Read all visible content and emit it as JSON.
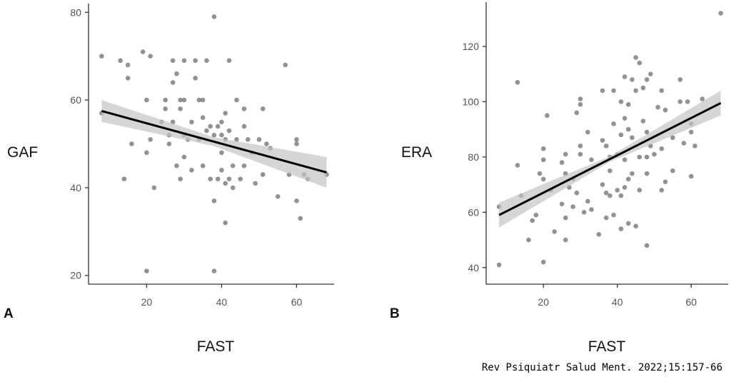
{
  "chart_data": [
    {
      "type": "scatter",
      "panel_label": "A",
      "xlabel": "FAST",
      "ylabel": "GAF",
      "xlim": [
        4.5,
        70
      ],
      "ylim": [
        18,
        82
      ],
      "xticks": [
        20,
        40,
        60
      ],
      "yticks": [
        20,
        40,
        60,
        80
      ],
      "grid": false,
      "regression": {
        "x": [
          8,
          68
        ],
        "y": [
          57.5,
          43.5
        ],
        "ci_halfwidth_ends": [
          2.5,
          3.5
        ]
      },
      "points": [
        [
          8,
          70
        ],
        [
          8,
          57
        ],
        [
          13,
          69
        ],
        [
          15,
          68
        ],
        [
          15,
          65
        ],
        [
          14,
          42
        ],
        [
          16,
          50
        ],
        [
          19,
          71
        ],
        [
          21,
          70
        ],
        [
          21,
          51
        ],
        [
          20,
          21
        ],
        [
          20,
          60
        ],
        [
          20,
          48
        ],
        [
          22,
          40
        ],
        [
          24,
          55
        ],
        [
          25,
          60
        ],
        [
          25,
          58
        ],
        [
          26,
          52
        ],
        [
          26,
          50
        ],
        [
          27,
          69
        ],
        [
          27,
          64
        ],
        [
          27,
          55
        ],
        [
          28,
          66
        ],
        [
          28,
          45
        ],
        [
          29,
          60
        ],
        [
          29,
          58
        ],
        [
          29,
          42
        ],
        [
          30,
          69
        ],
        [
          30,
          60
        ],
        [
          30,
          52
        ],
        [
          30,
          47
        ],
        [
          31,
          51
        ],
        [
          32,
          55
        ],
        [
          32,
          44
        ],
        [
          33,
          69
        ],
        [
          33,
          65
        ],
        [
          34,
          60
        ],
        [
          34,
          51
        ],
        [
          35,
          60
        ],
        [
          35,
          56
        ],
        [
          35,
          45
        ],
        [
          36,
          69
        ],
        [
          36,
          53
        ],
        [
          37,
          42
        ],
        [
          37,
          54
        ],
        [
          38,
          79
        ],
        [
          38,
          52
        ],
        [
          38,
          21
        ],
        [
          38,
          37
        ],
        [
          39,
          42
        ],
        [
          39,
          54
        ],
        [
          40,
          55
        ],
        [
          40,
          52
        ],
        [
          40,
          48
        ],
        [
          40,
          44
        ],
        [
          41,
          57
        ],
        [
          41,
          51
        ],
        [
          41,
          41
        ],
        [
          41,
          32
        ],
        [
          42,
          69
        ],
        [
          42,
          53
        ],
        [
          42,
          42
        ],
        [
          43,
          45
        ],
        [
          43,
          40
        ],
        [
          44,
          60
        ],
        [
          44,
          51
        ],
        [
          45,
          42
        ],
        [
          46,
          58
        ],
        [
          46,
          54
        ],
        [
          46,
          45
        ],
        [
          47,
          51
        ],
        [
          48,
          48
        ],
        [
          49,
          41
        ],
        [
          50,
          51
        ],
        [
          51,
          58
        ],
        [
          51,
          43
        ],
        [
          52,
          50
        ],
        [
          53,
          49
        ],
        [
          55,
          38
        ],
        [
          57,
          68
        ],
        [
          58,
          43
        ],
        [
          60,
          51
        ],
        [
          60,
          50
        ],
        [
          60,
          37
        ],
        [
          61,
          33
        ],
        [
          62,
          43
        ],
        [
          63,
          42
        ],
        [
          68,
          43
        ]
      ]
    },
    {
      "type": "scatter",
      "panel_label": "B",
      "xlabel": "FAST",
      "ylabel": "ERA",
      "xlim": [
        4.5,
        70
      ],
      "ylim": [
        34,
        136
      ],
      "xticks": [
        20,
        40,
        60
      ],
      "yticks": [
        40,
        60,
        80,
        100,
        120
      ],
      "grid": false,
      "regression": {
        "x": [
          8,
          68
        ],
        "y": [
          59,
          99.5
        ],
        "ci_halfwidth_ends": [
          4.5,
          4.5
        ]
      },
      "points": [
        [
          8,
          62
        ],
        [
          8,
          41
        ],
        [
          13,
          77
        ],
        [
          13,
          107
        ],
        [
          14,
          66
        ],
        [
          16,
          50
        ],
        [
          17,
          57
        ],
        [
          18,
          59
        ],
        [
          19,
          74
        ],
        [
          20,
          83
        ],
        [
          20,
          79
        ],
        [
          20,
          72
        ],
        [
          20,
          42
        ],
        [
          21,
          95
        ],
        [
          22,
          68
        ],
        [
          23,
          53
        ],
        [
          25,
          78
        ],
        [
          25,
          63
        ],
        [
          26,
          81
        ],
        [
          26,
          74
        ],
        [
          26,
          58
        ],
        [
          26,
          50
        ],
        [
          27,
          69
        ],
        [
          28,
          62
        ],
        [
          28,
          72
        ],
        [
          29,
          96
        ],
        [
          29,
          67
        ],
        [
          30,
          101
        ],
        [
          30,
          99
        ],
        [
          30,
          84
        ],
        [
          30,
          81
        ],
        [
          31,
          60
        ],
        [
          32,
          89
        ],
        [
          32,
          64
        ],
        [
          33,
          79
        ],
        [
          33,
          61
        ],
        [
          35,
          52
        ],
        [
          36,
          104
        ],
        [
          36,
          86
        ],
        [
          36,
          70
        ],
        [
          37,
          84
        ],
        [
          37,
          67
        ],
        [
          37,
          58
        ],
        [
          38,
          80
        ],
        [
          38,
          75
        ],
        [
          38,
          66
        ],
        [
          39,
          104
        ],
        [
          39,
          92
        ],
        [
          39,
          59
        ],
        [
          40,
          81
        ],
        [
          40,
          68
        ],
        [
          41,
          100
        ],
        [
          41,
          88
        ],
        [
          41,
          66
        ],
        [
          41,
          54
        ],
        [
          42,
          109
        ],
        [
          42,
          94
        ],
        [
          42,
          79
        ],
        [
          42,
          69
        ],
        [
          43,
          99
        ],
        [
          43,
          90
        ],
        [
          43,
          72
        ],
        [
          43,
          56
        ],
        [
          44,
          108
        ],
        [
          44,
          87
        ],
        [
          44,
          74
        ],
        [
          45,
          116
        ],
        [
          45,
          104
        ],
        [
          45,
          55
        ],
        [
          46,
          114
        ],
        [
          46,
          80
        ],
        [
          46,
          68
        ],
        [
          47,
          105
        ],
        [
          47,
          93
        ],
        [
          48,
          108
        ],
        [
          48,
          89
        ],
        [
          48,
          80
        ],
        [
          48,
          74
        ],
        [
          48,
          48
        ],
        [
          49,
          110
        ],
        [
          49,
          84
        ],
        [
          50,
          81
        ],
        [
          51,
          98
        ],
        [
          52,
          104
        ],
        [
          52,
          83
        ],
        [
          52,
          68
        ],
        [
          53,
          97
        ],
        [
          53,
          71
        ],
        [
          55,
          87
        ],
        [
          55,
          75
        ],
        [
          57,
          108
        ],
        [
          57,
          100
        ],
        [
          58,
          85
        ],
        [
          59,
          100
        ],
        [
          60,
          92
        ],
        [
          60,
          89
        ],
        [
          60,
          73
        ],
        [
          61,
          84
        ],
        [
          63,
          101
        ],
        [
          68,
          132
        ]
      ]
    }
  ],
  "colors": {
    "points": "#6e6e6e",
    "band": "#c4c4c4",
    "line": "#000000",
    "axis": "#333333"
  },
  "citation": "Rev Psiquiatr Salud Ment. 2022;15:157-66"
}
